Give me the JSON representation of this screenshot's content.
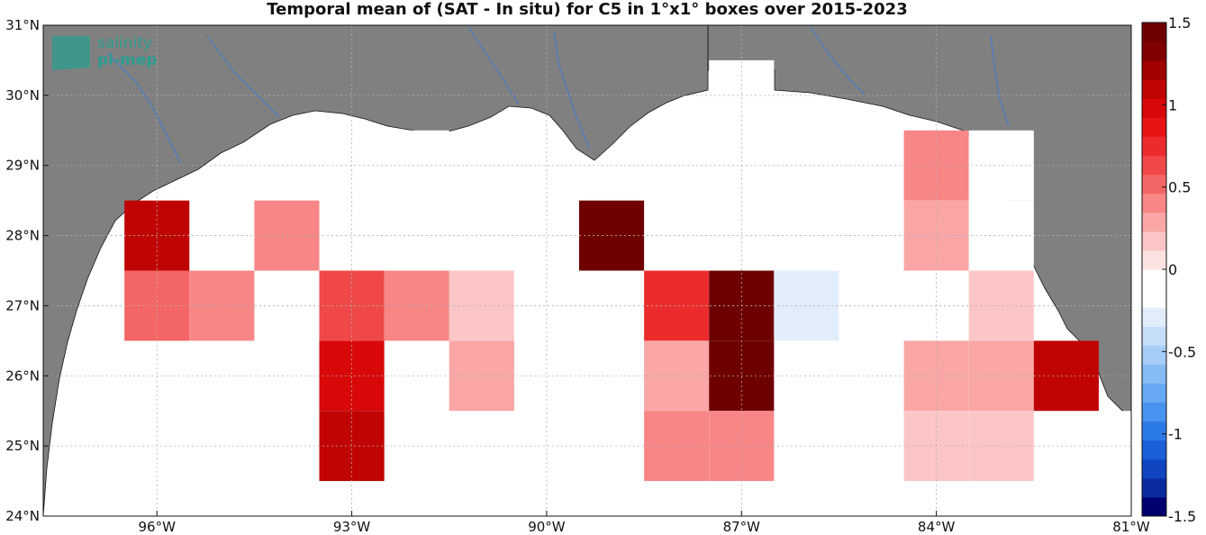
{
  "title": "Temporal mean of (SAT - In situ) for C5 in 1°x1° boxes over 2015-2023",
  "logo": {
    "line1": "salinity",
    "line2": "pi-mep"
  },
  "colors": {
    "land": "#808080",
    "ocean": "#ffffff",
    "river": "#3a7bd5",
    "grid": "#b0b0b0",
    "colormap": [
      "#00006e",
      "#0a2a9e",
      "#1044c0",
      "#1a5fd8",
      "#2c7ae8",
      "#4893f0",
      "#66a8f4",
      "#86bbf6",
      "#a6cdf8",
      "#c6ddfa",
      "#e2edfc",
      "#ffffff",
      "#ffffff",
      "#fde2e2",
      "#fcc6c6",
      "#faa6a6",
      "#f88686",
      "#f46666",
      "#f04848",
      "#ec2c2c",
      "#e81414",
      "#d80808",
      "#c00404",
      "#a00000",
      "#800000",
      "#6e0000"
    ]
  },
  "axes": {
    "x_ticks": [
      "96°W",
      "93°W",
      "90°W",
      "87°W",
      "84°W",
      "81°W"
    ],
    "y_ticks": [
      "24°N",
      "25°N",
      "26°N",
      "27°N",
      "28°N",
      "29°N",
      "30°N",
      "31°N"
    ]
  },
  "colorbar": {
    "min": -1.5,
    "max": 1.5,
    "labels": [
      "1.5",
      "1",
      "0.5",
      "0",
      "-0.5",
      "-1",
      "-1.5"
    ]
  },
  "chart_data": {
    "type": "heatmap",
    "title": "Temporal mean of (SAT - In situ) for C5 in 1°x1° boxes over 2015-2023",
    "lon_range": [
      -97.75,
      -81
    ],
    "lat_range": [
      24,
      31
    ],
    "vrange": [
      -1.5,
      1.5
    ],
    "cells": [
      {
        "lon": -87,
        "lat": 30,
        "v": -0.2
      },
      {
        "lon": -92,
        "lat": 29,
        "v": -0.1
      },
      {
        "lon": -88,
        "lat": 29,
        "v": -0.1
      },
      {
        "lon": -84,
        "lat": 29,
        "v": 0.45
      },
      {
        "lon": -83,
        "lat": 29,
        "v": -0.1
      },
      {
        "lon": -96,
        "lat": 28,
        "v": 1.05
      },
      {
        "lon": -94,
        "lat": 28,
        "v": 0.4
      },
      {
        "lon": -91,
        "lat": 28,
        "v": -0.1
      },
      {
        "lon": -89,
        "lat": 28,
        "v": 1.45
      },
      {
        "lon": -85,
        "lat": 28,
        "v": -0.1
      },
      {
        "lon": -84,
        "lat": 28,
        "v": 0.3
      },
      {
        "lon": -83,
        "lat": 28,
        "v": -0.2
      },
      {
        "lon": -96,
        "lat": 27,
        "v": 0.5
      },
      {
        "lon": -95,
        "lat": 27,
        "v": 0.4
      },
      {
        "lon": -93,
        "lat": 27,
        "v": 0.6
      },
      {
        "lon": -92,
        "lat": 27,
        "v": 0.45
      },
      {
        "lon": -91,
        "lat": 27,
        "v": 0.15
      },
      {
        "lon": -90,
        "lat": 27,
        "v": -0.2
      },
      {
        "lon": -89,
        "lat": 27,
        "v": -0.2
      },
      {
        "lon": -88,
        "lat": 27,
        "v": 0.8
      },
      {
        "lon": -87,
        "lat": 27,
        "v": 1.5
      },
      {
        "lon": -86,
        "lat": 27,
        "v": -0.3
      },
      {
        "lon": -83,
        "lat": 27,
        "v": 0.15
      },
      {
        "lon": -93,
        "lat": 26,
        "v": 1.0
      },
      {
        "lon": -91,
        "lat": 26,
        "v": 0.3
      },
      {
        "lon": -89,
        "lat": 26,
        "v": -0.2
      },
      {
        "lon": -88,
        "lat": 26,
        "v": 0.3
      },
      {
        "lon": -87,
        "lat": 26,
        "v": 1.5
      },
      {
        "lon": -84,
        "lat": 26,
        "v": 0.3
      },
      {
        "lon": -83,
        "lat": 26,
        "v": 0.3
      },
      {
        "lon": -82,
        "lat": 26,
        "v": 1.1
      },
      {
        "lon": -93,
        "lat": 25,
        "v": 1.05
      },
      {
        "lon": -88,
        "lat": 25,
        "v": 0.45
      },
      {
        "lon": -87,
        "lat": 25,
        "v": 0.45
      },
      {
        "lon": -84,
        "lat": 25,
        "v": 0.15
      },
      {
        "lon": -83,
        "lat": 25,
        "v": 0.15
      },
      {
        "lon": -81,
        "lat": 25,
        "v": -0.2
      }
    ]
  }
}
